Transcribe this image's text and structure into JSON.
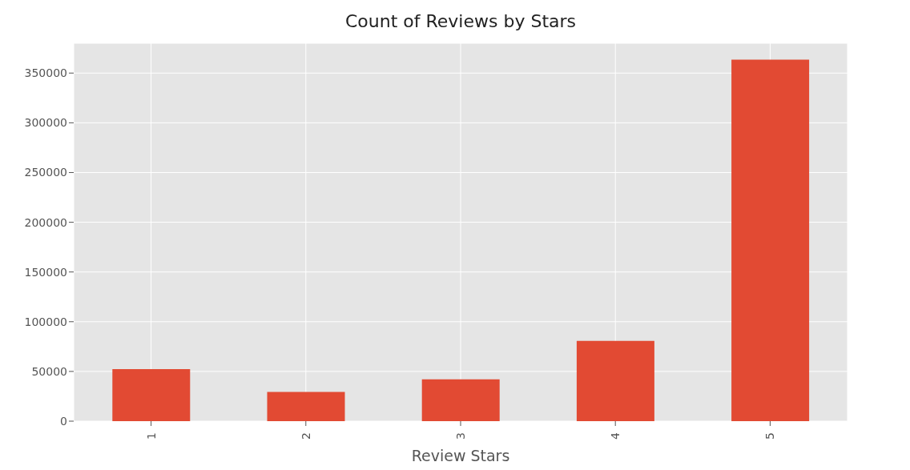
{
  "chart_data": {
    "type": "bar",
    "title": "Count of Reviews by Stars",
    "xlabel": "Review Stars",
    "categories": [
      "1",
      "2",
      "3",
      "4",
      "5"
    ],
    "values": [
      52300,
      29300,
      42000,
      80800,
      363500
    ],
    "color": "#e24a33",
    "ylim": [
      0,
      380000
    ],
    "yticks": [
      0,
      50000,
      100000,
      150000,
      200000,
      250000,
      300000,
      350000
    ],
    "grid": true
  }
}
